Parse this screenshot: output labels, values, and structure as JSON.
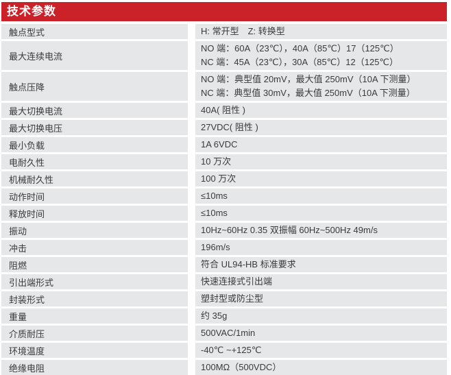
{
  "header": {
    "title": "技术参数"
  },
  "colors": {
    "accent_red": "#cb2129",
    "row_background": "#e6e7e9",
    "text": "#3a3a3c",
    "header_text": "#ffffff"
  },
  "table": {
    "rows": [
      {
        "label": "触点型式",
        "lines": [
          "H: 常开型　Z: 转换型"
        ]
      },
      {
        "label": "最大连续电流",
        "lines": [
          "NO 端：60A（23℃），40A（85℃）17（125℃）",
          "NC 端：45A（23℃），30A（85℃）12（125℃）"
        ]
      },
      {
        "label": "触点压降",
        "lines": [
          "NO 端：典型值 20mV，最大值 250mV（10A 下测量）",
          "NC 端：典型值 30mV，最大值 250mV（10A 下测量）"
        ]
      },
      {
        "label": "最大切换电流",
        "lines": [
          "40A( 阻性 )"
        ]
      },
      {
        "label": "最大切换电压",
        "lines": [
          "27VDC( 阻性 )"
        ]
      },
      {
        "label": "最小负载",
        "lines": [
          "1A 6VDC"
        ]
      },
      {
        "label": "电耐久性",
        "lines": [
          "10 万次"
        ]
      },
      {
        "label": "机械耐久性",
        "lines": [
          "100 万次"
        ]
      },
      {
        "label": "动作时间",
        "lines": [
          "≤10ms"
        ]
      },
      {
        "label": "释放时间",
        "lines": [
          "≤10ms"
        ]
      },
      {
        "label": "振动",
        "lines": [
          "10Hz~60Hz 0.35 双振幅 60Hz~500Hz 49m/s"
        ]
      },
      {
        "label": "冲击",
        "lines": [
          "196m/s"
        ]
      },
      {
        "label": "阻燃",
        "lines": [
          "符合 UL94-HB 标准要求"
        ]
      },
      {
        "label": "引出端形式",
        "lines": [
          "快速连接式引出端"
        ]
      },
      {
        "label": "封装形式",
        "lines": [
          "塑封型或防尘型"
        ]
      },
      {
        "label": "重量",
        "lines": [
          "约 35g"
        ]
      },
      {
        "label": "介质耐压",
        "lines": [
          "500VAC/1min"
        ]
      },
      {
        "label": "环境温度",
        "lines": [
          "-40℃ ~+125℃"
        ]
      },
      {
        "label": "绝缘电阻",
        "lines": [
          "100MΩ（500VDC）"
        ]
      }
    ]
  }
}
